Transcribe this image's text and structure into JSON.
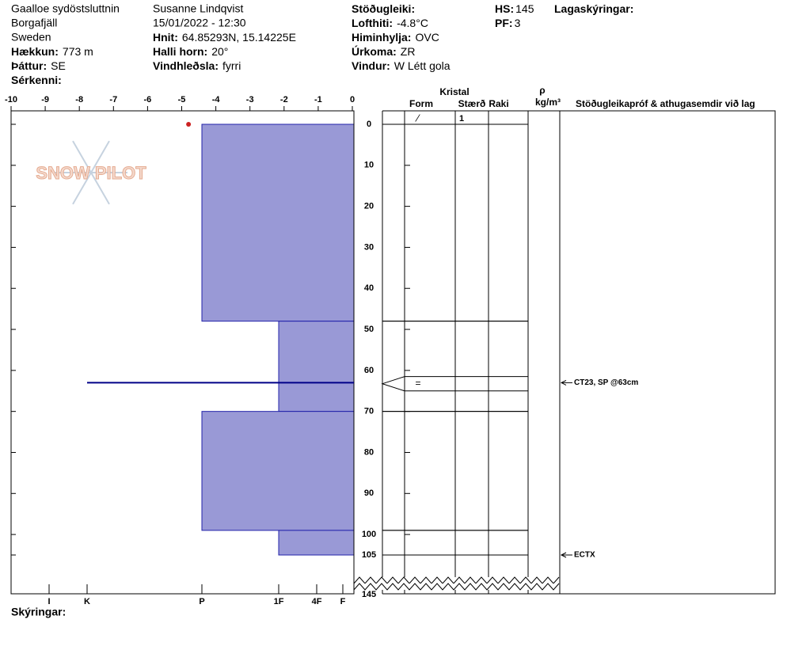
{
  "header": {
    "location": [
      "Gaalloe sydöstsluttnin",
      "Borgafjäll",
      "Sweden"
    ],
    "observer": "Susanne Lindqvist",
    "datetime": "15/01/2022 - 12:30",
    "fields": [
      {
        "label": "Hækkun:",
        "value": "773 m"
      },
      {
        "label": "Þáttur:",
        "value": "SE"
      },
      {
        "label": "Sérkenni:"
      },
      {
        "label": "Hnit:",
        "value": "64.85293N, 15.14225E"
      },
      {
        "label": "Halli horn:",
        "value": "20°"
      },
      {
        "label": "Vindhleðsla:",
        "value": "fyrri"
      },
      {
        "label": "Stöðugleiki:"
      },
      {
        "label": "Lofthiti:",
        "value": "-4.8°C"
      },
      {
        "label": "Himinhylja:",
        "value": "OVC"
      },
      {
        "label": "Úrkoma:",
        "value": "ZR"
      },
      {
        "label": "Vindur:",
        "value": "W Létt gola"
      },
      {
        "label": "HS:",
        "value": 145
      },
      {
        "label": "PF:",
        "value": 3
      },
      {
        "label": "Lagaskýringar:"
      }
    ]
  },
  "logo": "SNOW PILOT",
  "chart_data": {
    "type": "snow-profile",
    "temperature_ticks": [
      -10,
      -9,
      -8,
      -7,
      -6,
      -5,
      -4,
      -3,
      -2,
      -1,
      0
    ],
    "temperature_lim": [
      -10,
      0
    ],
    "depth_ticks": [
      0,
      10,
      20,
      30,
      40,
      50,
      60,
      70,
      80,
      90,
      100,
      105
    ],
    "depth_bottom": 145,
    "hardness_scale": [
      "I",
      "K",
      "P",
      "1F",
      "4F",
      "F"
    ],
    "temperatures": [
      {
        "depth": 0,
        "temp": -4.8
      }
    ],
    "layers": [
      {
        "top": 0,
        "bottom": 48,
        "hardness": "P",
        "form": "⁄",
        "size": 1
      },
      {
        "top": 48,
        "bottom": 70,
        "hardness": "1F"
      },
      {
        "top": 70,
        "bottom": 99,
        "hardness": "P"
      },
      {
        "top": 99,
        "bottom": 105,
        "hardness": "1F"
      }
    ],
    "thin_layers": [
      {
        "top": 61.5,
        "bottom": 65,
        "form": "="
      }
    ],
    "columns": {
      "crystal": "Kristal",
      "form": "Form",
      "size": "Stærð",
      "moisture": "Raki",
      "rho": "ρ",
      "density_unit": "kg/m³",
      "comments": "Stöðugleikapróf & athugasemdir við lag"
    },
    "tests": [
      {
        "depth": 63,
        "text": "CT23, SP @63cm"
      },
      {
        "depth": 105,
        "text": "ECTX"
      }
    ],
    "bar_color": "#9999d6",
    "temp_color": "#cc2222",
    "test_line_color": "#000088"
  },
  "footer": "Skýringar:"
}
